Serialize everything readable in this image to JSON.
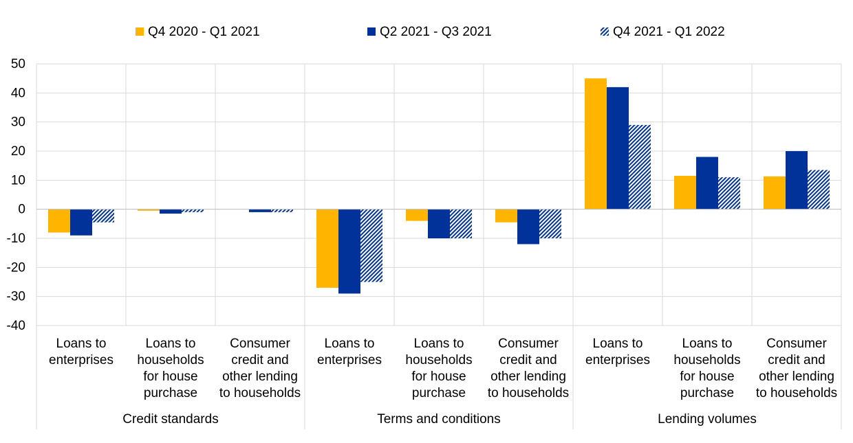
{
  "chart_data": {
    "type": "bar",
    "groups": [
      {
        "label": "Credit standards",
        "categories": [
          "Loans to enterprises",
          "Loans to households for house purchase",
          "Consumer credit and other lending to households"
        ]
      },
      {
        "label": "Terms and conditions",
        "categories": [
          "Loans to enterprises",
          "Loans to households for house purchase",
          "Consumer credit and other lending to households"
        ]
      },
      {
        "label": "Lending volumes",
        "categories": [
          "Loans to enterprises",
          "Loans to households for house purchase",
          "Consumer credit and other lending to households"
        ]
      }
    ],
    "category_lines": [
      [
        "Loans to",
        "enterprises"
      ],
      [
        "Loans to",
        "households",
        "for house",
        "purchase"
      ],
      [
        "Consumer",
        "credit and",
        "other lending",
        "to households"
      ]
    ],
    "series": [
      {
        "name": "Q4 2020 - Q1 2021",
        "color": "#FFB400",
        "pattern": "solid",
        "values": [
          -8,
          -0.5,
          0,
          -27,
          -4,
          -4.5,
          45,
          11.5,
          11.3
        ]
      },
      {
        "name": "Q2 2021 - Q3 2021",
        "color": "#003299",
        "pattern": "solid",
        "values": [
          -9,
          -1.5,
          -1,
          -29,
          -10,
          -12,
          42,
          18,
          20
        ]
      },
      {
        "name": "Q4 2021 - Q1 2022",
        "color": "#003299",
        "pattern": "hatched",
        "values": [
          -4.5,
          -1,
          -1,
          -25,
          -10,
          -10,
          29,
          11,
          13.5
        ]
      }
    ],
    "ylim": [
      -40,
      50
    ],
    "yticks": [
      -40,
      -30,
      -20,
      -10,
      0,
      10,
      20,
      30,
      40,
      50
    ],
    "grid": true,
    "legend_position": "top"
  }
}
